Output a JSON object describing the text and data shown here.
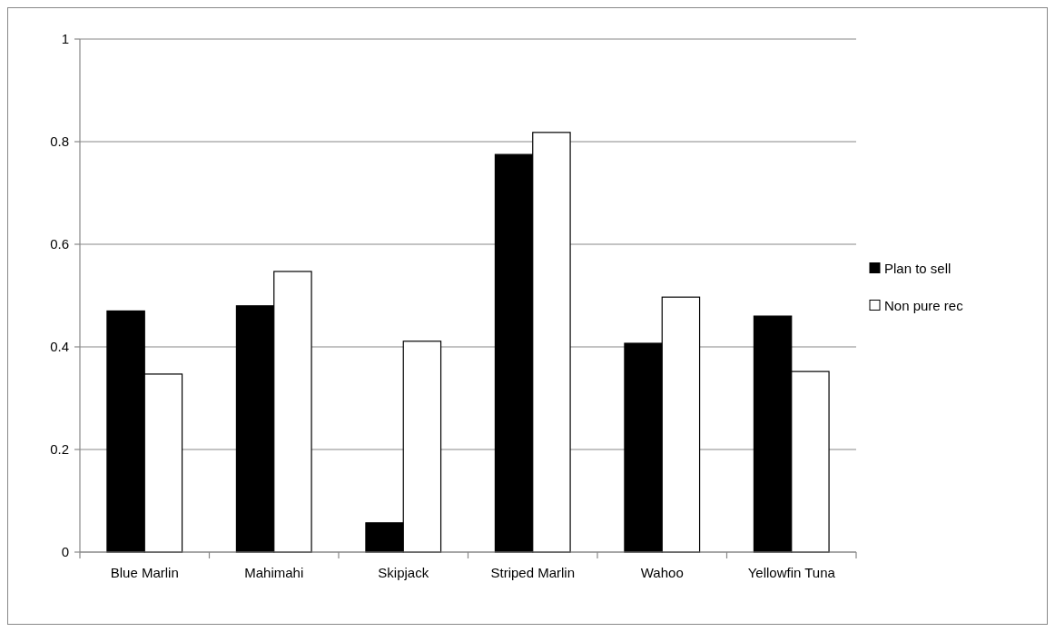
{
  "chart_data": {
    "type": "bar",
    "categories": [
      "Blue Marlin",
      "Mahimahi",
      "Skipjack",
      "Striped Marlin",
      "Wahoo",
      "Yellowfin Tuna"
    ],
    "series": [
      {
        "name": "Plan to sell",
        "color": "#000000",
        "values": [
          0.47,
          0.48,
          0.057,
          0.775,
          0.407,
          0.46
        ]
      },
      {
        "name": "Non pure rec",
        "color": "#ffffff",
        "values": [
          0.347,
          0.547,
          0.411,
          0.818,
          0.497,
          0.352
        ]
      }
    ],
    "ylim": [
      0,
      1
    ],
    "yticks": [
      0,
      0.2,
      0.4,
      0.6,
      0.8,
      1
    ],
    "grid": "y",
    "legend": "right"
  }
}
